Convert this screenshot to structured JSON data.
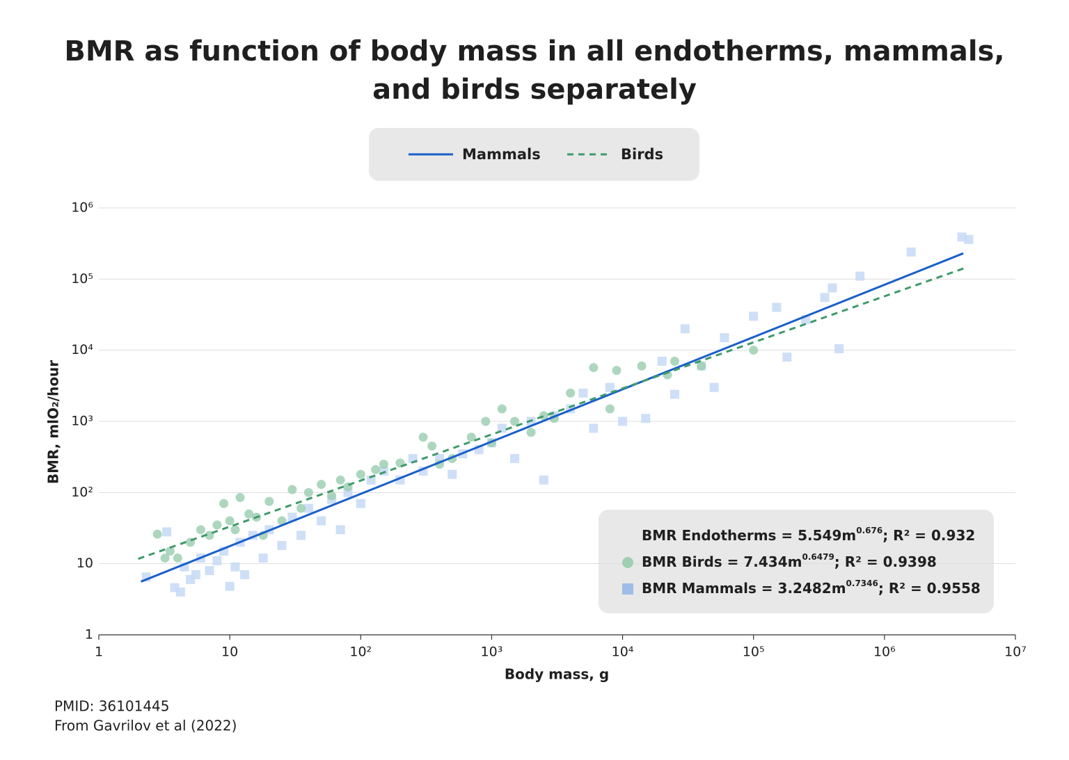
{
  "chart_data": {
    "type": "scatter",
    "title": [
      "BMR as function of body mass in all endotherms, mammals,",
      "and birds separately"
    ],
    "xlabel": "Body mass, g",
    "ylabel": "BMR, mlO₂/hour",
    "log_x": true,
    "log_y": true,
    "grid": true,
    "legend": "top",
    "xlim": [
      1,
      10000000
    ],
    "ylim": [
      1,
      1000000
    ],
    "xticks": [
      1,
      10,
      {
        "value": 100,
        "label": "10²"
      },
      {
        "value": 1000,
        "label": "10³"
      },
      {
        "value": 10000,
        "label": "10⁴"
      },
      {
        "value": 100000,
        "label": "10⁵"
      },
      {
        "value": 1000000,
        "label": "10⁶"
      },
      {
        "value": 10000000,
        "label": "10⁷"
      }
    ],
    "yticks": [
      1,
      10,
      {
        "value": 100,
        "label": "10²"
      },
      {
        "value": 1000,
        "label": "10³"
      },
      {
        "value": 10000,
        "label": "10⁴"
      },
      {
        "value": 100000,
        "label": "10⁵"
      },
      {
        "value": 1000000,
        "label": "10⁶"
      }
    ],
    "series": [
      {
        "kind": "scatter",
        "marker": "square",
        "color": "#c6d9f6",
        "legend_color": "#9fbce8",
        "equation": {
          "text": "BMR Mammals = 3.2482m",
          "exponent": "0.7346",
          "rest": "; R² = 0.9558"
        },
        "x": [
          2.3,
          3.3,
          3.8,
          4.2,
          4.5,
          5,
          5.5,
          6,
          7,
          8,
          9,
          10,
          11,
          12,
          13,
          15,
          18,
          20,
          25,
          30,
          35,
          40,
          50,
          60,
          70,
          80,
          100,
          120,
          150,
          200,
          250,
          300,
          400,
          500,
          600,
          800,
          1000,
          1200,
          1500,
          2000,
          2500,
          3000,
          4000,
          5000,
          6000,
          8000,
          10000,
          15000,
          20000,
          25000,
          30000,
          40000,
          50000,
          60000,
          100000,
          150000,
          180000,
          250000,
          350000,
          400000,
          450000,
          650000,
          1600000,
          3900000,
          4400000
        ],
        "values": [
          6.5,
          28,
          4.6,
          4,
          9,
          6,
          7,
          12,
          8,
          11,
          15,
          4.8,
          9,
          20,
          7,
          25,
          12,
          30,
          18,
          45,
          25,
          60,
          40,
          80,
          30,
          100,
          70,
          150,
          200,
          150,
          300,
          200,
          300,
          180,
          350,
          400,
          500,
          800,
          300,
          1000,
          150,
          1200,
          1500,
          2500,
          800,
          3000,
          1000,
          1100,
          7000,
          2400,
          20000,
          6000,
          3000,
          15000,
          30000,
          40000,
          8000,
          27000,
          55000,
          75000,
          10500,
          110000,
          240000,
          390000,
          360000
        ]
      },
      {
        "kind": "scatter",
        "marker": "circle",
        "color": "#9fcfb3",
        "legend_color": "#9fcfb3",
        "equation": {
          "text": "BMR Birds = 7.434m",
          "exponent": "0.6479",
          "rest": "; R² = 0.9398"
        },
        "x": [
          2.8,
          3.2,
          3.5,
          4,
          5,
          6,
          7,
          8,
          9,
          10,
          11,
          12,
          14,
          16,
          18,
          20,
          25,
          30,
          35,
          40,
          50,
          60,
          70,
          80,
          100,
          130,
          150,
          200,
          300,
          350,
          400,
          500,
          700,
          900,
          1000,
          1200,
          1500,
          2000,
          2500,
          3000,
          4000,
          6000,
          8000,
          9000,
          14000,
          22000,
          25000,
          40000,
          100000
        ],
        "values": [
          26,
          12,
          15,
          12,
          20,
          30,
          25,
          35,
          70,
          40,
          30,
          85,
          50,
          45,
          25,
          75,
          40,
          110,
          60,
          100,
          130,
          90,
          150,
          120,
          180,
          210,
          250,
          260,
          600,
          450,
          250,
          300,
          600,
          1000,
          500,
          1500,
          1000,
          700,
          1200,
          1100,
          2500,
          5700,
          1500,
          5200,
          6000,
          4500,
          7000,
          6000,
          10000
        ]
      },
      {
        "kind": "line",
        "name": "Mammals",
        "color": "#1a5fc9",
        "dashed": false,
        "x": [
          2.1,
          4000000
        ],
        "values": [
          5.6,
          230000
        ]
      },
      {
        "kind": "line",
        "name": "Birds",
        "color": "#3d9a6a",
        "dashed": true,
        "x": [
          2,
          4200000
        ],
        "values": [
          11.7,
          145000
        ]
      }
    ],
    "annotation": {
      "text": "BMR Endotherms = 5.549m",
      "exponent": "0.676",
      "rest": "; R² = 0.932"
    },
    "notes": [
      "PMID: 36101445",
      "From Gavrilov et al (2022)"
    ]
  }
}
